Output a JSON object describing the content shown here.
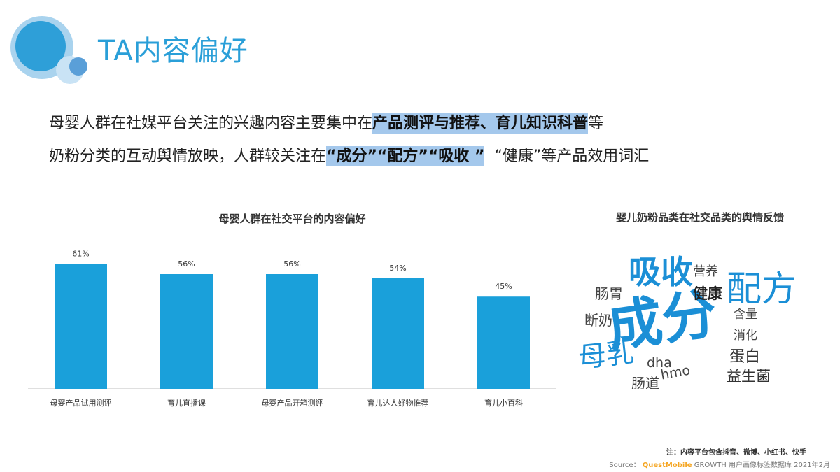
{
  "header": {
    "title": "TA内容偏好"
  },
  "headline": {
    "line1_plain": "母婴人群在社媒平台关注的兴趣内容主要集中在",
    "line1_highlight": "产品测评与推荐、育儿知识科普",
    "line1_tail": "等",
    "line2_plain": "奶粉分类的互动舆情放映，人群较关注在",
    "line2_highlight": "“成分”“配方”“吸收 ”",
    "line2_tail": "“健康”等产品效用词汇"
  },
  "chart_data": {
    "type": "bar",
    "title": "母婴人群在社交平台的内容偏好",
    "categories": [
      "母婴产品试用测评",
      "育儿直播课",
      "母婴产品开箱测评",
      "育儿达人好物推荐",
      "育儿小百科"
    ],
    "values": [
      61,
      56,
      56,
      54,
      45
    ],
    "value_labels": [
      "61%",
      "56%",
      "56%",
      "54%",
      "45%"
    ],
    "ylim": [
      0,
      70
    ],
    "grid": false,
    "bar_color": "#1aa0da"
  },
  "word_cloud": {
    "title": "婴儿奶粉品类在社交品类的舆情反馈",
    "words": [
      {
        "text": "成分",
        "color": "#1b8fd6"
      },
      {
        "text": "吸收",
        "color": "#1b8fd6"
      },
      {
        "text": "配方",
        "color": "#1b8fd6"
      },
      {
        "text": "母乳",
        "color": "#1b8fd6"
      },
      {
        "text": "健康",
        "color": "#222222"
      },
      {
        "text": "营养",
        "color": "#444444"
      },
      {
        "text": "肠胃",
        "color": "#444444"
      },
      {
        "text": "断奶",
        "color": "#444444"
      },
      {
        "text": "含量",
        "color": "#444444"
      },
      {
        "text": "消化",
        "color": "#444444"
      },
      {
        "text": "蛋白",
        "color": "#333333"
      },
      {
        "text": "dha",
        "color": "#444444"
      },
      {
        "text": "hmo",
        "color": "#444444"
      },
      {
        "text": "肠道",
        "color": "#444444"
      },
      {
        "text": "益生菌",
        "color": "#333333"
      }
    ]
  },
  "footer": {
    "note": "注：内容平台包含抖音、微博、小红书、快手",
    "source_label": "Source：",
    "source_brand": "QuestMobile",
    "source_text": "GROWTH 用户画像标签数据库 2021年2月"
  }
}
